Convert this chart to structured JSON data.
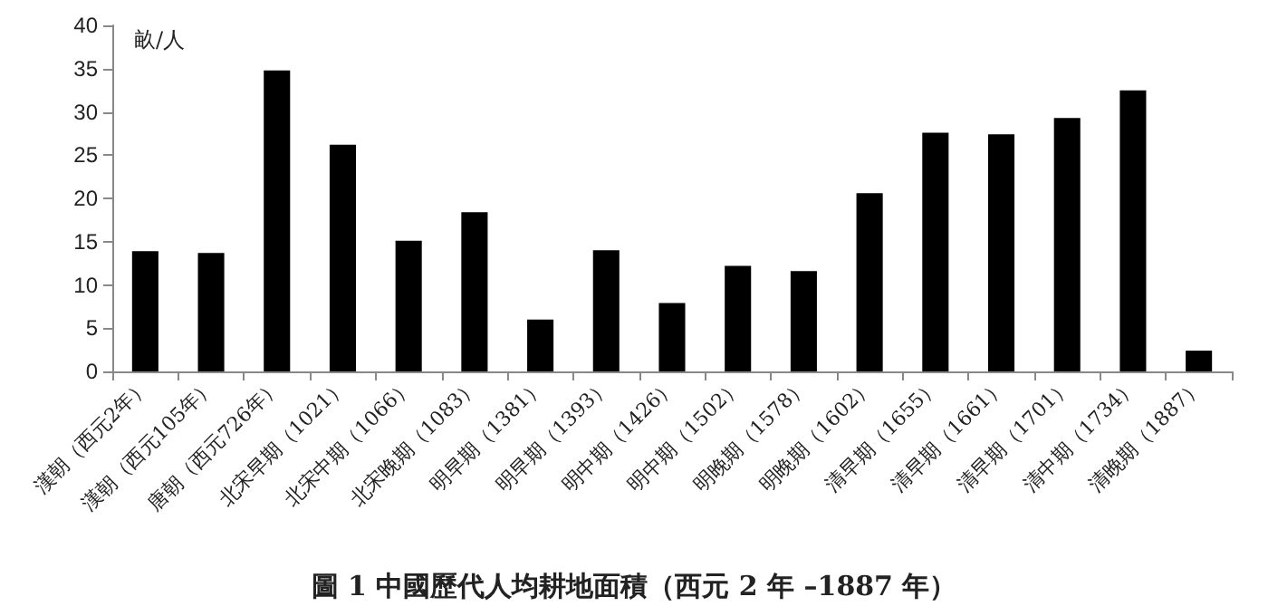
{
  "chart_data": {
    "type": "bar",
    "title": "圖 1 中國歷代人均耕地面積（西元 2 年 –1887 年）",
    "ylabel": "畝/人",
    "categories": [
      "漢朝（西元2年）",
      "漢朝（西元105年）",
      "唐朝（西元726年）",
      "北宋早期（1021）",
      "北宋中期（1066）",
      "北宋晚期（1083）",
      "明早期（1381）",
      "明早期（1393）",
      "明中期（1426）",
      "明中期（1502）",
      "明晚期（1578）",
      "明晚期（1602）",
      "清早期（1655）",
      "清早期（1661）",
      "清早期（1701）",
      "清中期（1734）",
      "清晚期（1887）"
    ],
    "values": [
      13.9,
      13.7,
      34.8,
      26.2,
      15.1,
      18.4,
      6.0,
      14.0,
      7.9,
      12.2,
      11.6,
      20.6,
      27.6,
      27.4,
      29.3,
      32.5,
      2.4
    ],
    "color": "#000000",
    "ylim": [
      0,
      40
    ],
    "yticks": [
      0,
      5,
      10,
      15,
      20,
      25,
      30,
      35,
      40
    ],
    "grid": false
  }
}
